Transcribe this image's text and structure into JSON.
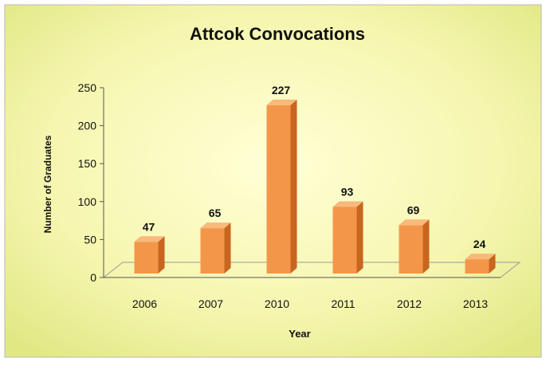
{
  "chart_data": {
    "type": "bar",
    "title": "Attcok Convocations",
    "xlabel": "Year",
    "ylabel": "Number of Graduates",
    "categories": [
      "2006",
      "2007",
      "2010",
      "2011",
      "2012",
      "2013"
    ],
    "values": [
      47,
      65,
      227,
      93,
      69,
      24
    ],
    "data_labels": [
      "47",
      "65",
      "227",
      "93",
      "69",
      "24"
    ],
    "ylim": [
      0,
      250
    ],
    "yticks": [
      "0",
      "50",
      "100",
      "150",
      "200",
      "250"
    ],
    "grid": false,
    "legend": "none",
    "colors": {
      "bar_front": "#f4964a",
      "bar_side": "#c8651f",
      "bar_top": "#f8b97a",
      "background_center": "#ffffd2",
      "background_edge": "#e4eb8c"
    }
  }
}
